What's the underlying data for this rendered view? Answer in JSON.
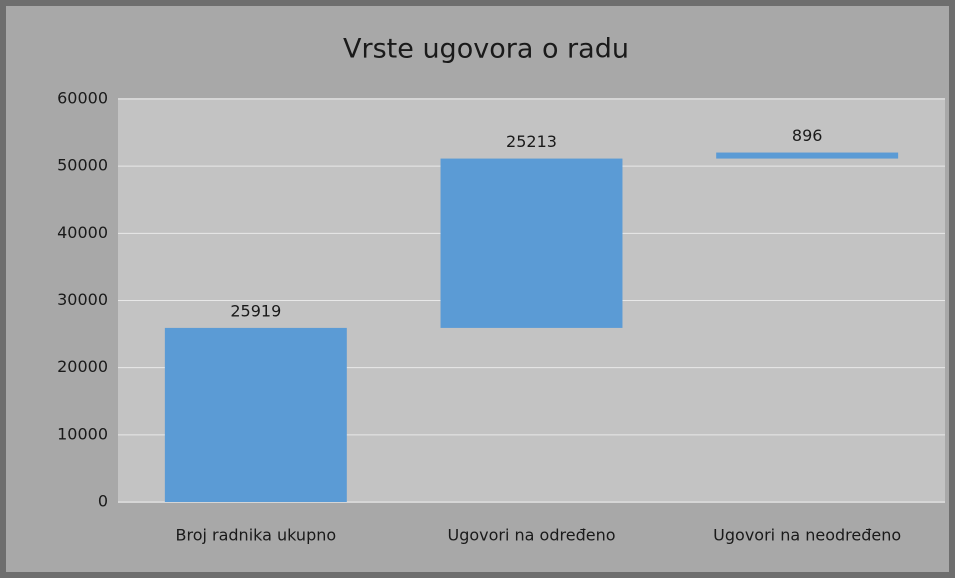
{
  "chart_data": {
    "type": "waterfall",
    "title": "Vrste ugovora o radu",
    "categories": [
      "Broj radnika ukupno",
      "Ugovori na određeno",
      "Ugovori na neodređeno"
    ],
    "values": [
      25919,
      25213,
      896
    ],
    "color": "#5b9bd5",
    "ylim": [
      0,
      60000
    ],
    "yticks": [
      0,
      10000,
      20000,
      30000,
      40000,
      50000,
      60000
    ],
    "grid": true
  }
}
